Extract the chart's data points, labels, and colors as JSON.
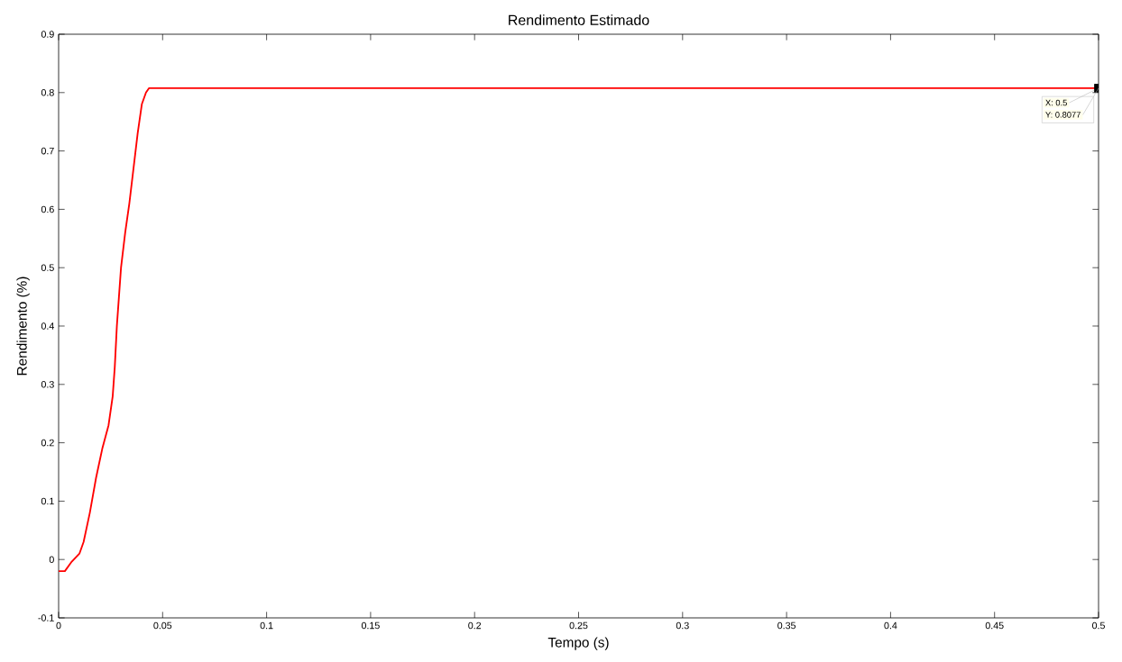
{
  "chart_data": {
    "type": "line",
    "title": "Rendimento Estimado",
    "xlabel": "Tempo (s)",
    "ylabel": "Rendimento (%)",
    "x": [
      0,
      0.003,
      0.006,
      0.01,
      0.012,
      0.015,
      0.018,
      0.021,
      0.024,
      0.026,
      0.027,
      0.028,
      0.029,
      0.03,
      0.032,
      0.034,
      0.036,
      0.038,
      0.04,
      0.042,
      0.0435,
      0.5
    ],
    "series": [
      {
        "color": "#ff0000",
        "values": [
          -0.02,
          -0.02,
          -0.005,
          0.01,
          0.03,
          0.08,
          0.14,
          0.19,
          0.23,
          0.28,
          0.33,
          0.4,
          0.45,
          0.5,
          0.56,
          0.61,
          0.67,
          0.73,
          0.78,
          0.8,
          0.8077,
          0.8077
        ]
      }
    ],
    "xlim": [
      0,
      0.5
    ],
    "ylim": [
      -0.1,
      0.9
    ],
    "xticks": [
      0,
      0.05,
      0.1,
      0.15,
      0.2,
      0.25,
      0.3,
      0.35,
      0.4,
      0.45,
      0.5
    ],
    "yticks": [
      -0.1,
      0,
      0.1,
      0.2,
      0.3,
      0.4,
      0.5,
      0.6,
      0.7,
      0.8,
      0.9
    ],
    "annotations": [
      {
        "text": "X: 0.5",
        "x": 0.5,
        "y": 0.8077
      },
      {
        "text": "Y: 0.8077",
        "x": 0.5,
        "y": 0.8077
      }
    ],
    "grid": false,
    "marker": "none",
    "line_style": "solid"
  }
}
